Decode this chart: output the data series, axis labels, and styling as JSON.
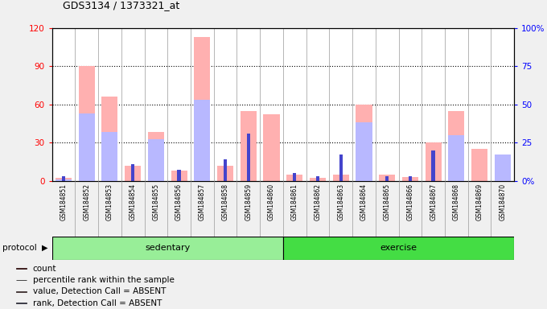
{
  "title": "GDS3134 / 1373321_at",
  "samples": [
    "GSM184851",
    "GSM184852",
    "GSM184853",
    "GSM184854",
    "GSM184855",
    "GSM184856",
    "GSM184857",
    "GSM184858",
    "GSM184859",
    "GSM184860",
    "GSM184861",
    "GSM184862",
    "GSM184863",
    "GSM184864",
    "GSM184865",
    "GSM184866",
    "GSM184867",
    "GSM184868",
    "GSM184869",
    "GSM184870"
  ],
  "value_absent": [
    2,
    90,
    66,
    12,
    38,
    8,
    113,
    12,
    55,
    52,
    5,
    2,
    5,
    60,
    5,
    3,
    30,
    55,
    25,
    15
  ],
  "rank_absent": [
    1,
    44,
    32,
    0,
    27,
    0,
    53,
    0,
    0,
    0,
    0,
    0,
    0,
    38,
    0,
    0,
    0,
    30,
    0,
    17
  ],
  "count_val": [
    0,
    0,
    0,
    0,
    0,
    0,
    0,
    0,
    0,
    0,
    0,
    0,
    0,
    0,
    0,
    0,
    0,
    0,
    0,
    0
  ],
  "percentile_rank": [
    3,
    0,
    0,
    11,
    0,
    7,
    0,
    14,
    31,
    0,
    5,
    3,
    17,
    0,
    3,
    3,
    20,
    0,
    0,
    0
  ],
  "sedentary_count": 10,
  "exercise_count": 10,
  "ylim_left": [
    0,
    120
  ],
  "ylim_right": [
    0,
    100
  ],
  "yticks_left": [
    0,
    30,
    60,
    90,
    120
  ],
  "yticks_right": [
    0,
    25,
    50,
    75,
    100
  ],
  "yticklabels_left": [
    "0",
    "30",
    "60",
    "90",
    "120"
  ],
  "yticklabels_right": [
    "0%",
    "25",
    "50",
    "75",
    "100%"
  ],
  "bg_color": "#f0f0f0",
  "plot_bg": "#ffffff",
  "xlabels_bg": "#d0d0d0",
  "color_value_absent": "#ffb0b0",
  "color_rank_absent": "#b8b8ff",
  "color_count": "#cc0000",
  "color_percentile": "#4444cc",
  "sedentary_color": "#98ee98",
  "exercise_color": "#44dd44",
  "protocol_label": "protocol",
  "sedentary_label": "sedentary",
  "exercise_label": "exercise"
}
